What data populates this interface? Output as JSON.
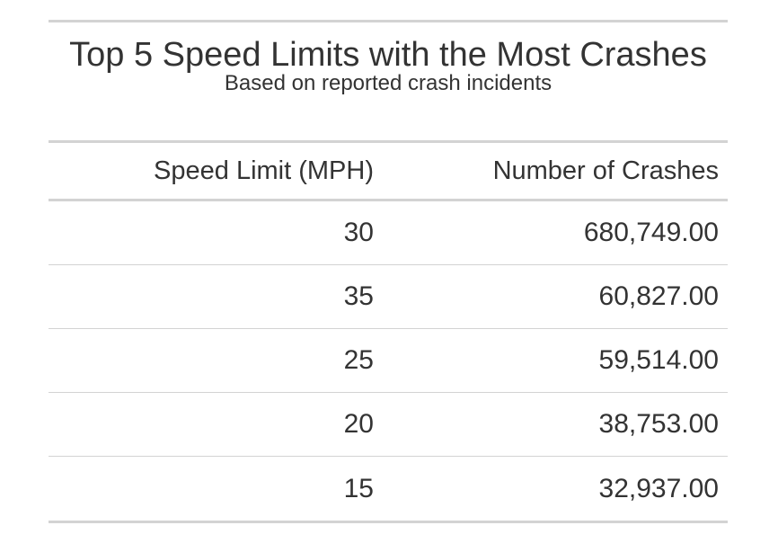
{
  "chart_data": {
    "type": "table",
    "title": "Top 5 Speed Limits with the Most Crashes",
    "subtitle": "Based on reported crash incidents",
    "columns": [
      "Speed Limit (MPH)",
      "Number of Crashes"
    ],
    "rows": [
      {
        "speed_limit": "30",
        "crashes": "680,749.00"
      },
      {
        "speed_limit": "35",
        "crashes": "60,827.00"
      },
      {
        "speed_limit": "25",
        "crashes": "59,514.00"
      },
      {
        "speed_limit": "20",
        "crashes": "38,753.00"
      },
      {
        "speed_limit": "15",
        "crashes": "32,937.00"
      }
    ],
    "values": [
      680749,
      60827,
      59514,
      38753,
      32937
    ]
  }
}
